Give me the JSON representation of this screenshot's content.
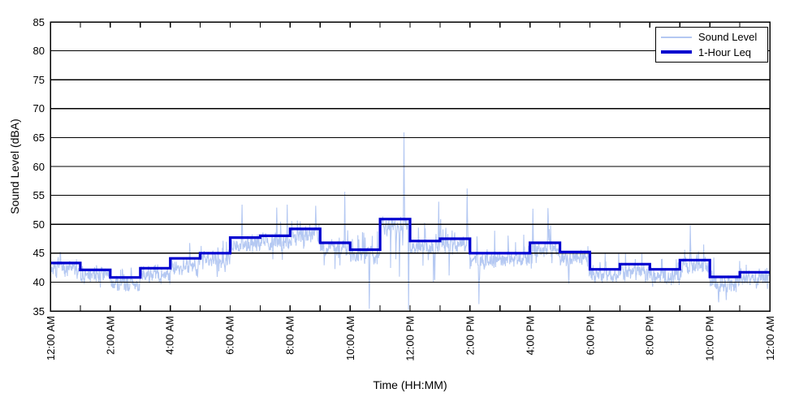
{
  "legend": {
    "position": "top-right",
    "items": [
      {
        "label": "Sound Level",
        "color": "#b4c8f2",
        "line_width": 1
      },
      {
        "label": "1-Hour Leq",
        "color": "#0000cf",
        "line_width": 3
      }
    ]
  },
  "chart_data": {
    "type": "line",
    "title": "",
    "xlabel": "Time (HH:MM)",
    "ylabel": "Sound Level (dBA)",
    "ylim": [
      35,
      85
    ],
    "ytick_interval": 5,
    "ytick_values": [
      35,
      40,
      45,
      50,
      55,
      60,
      65,
      70,
      75,
      80,
      85
    ],
    "x_span_hours": 24,
    "xtick_major_every_hours": 2,
    "xtick_minor_every_hours": 1,
    "xtick_labels": [
      "12:00 AM",
      "2:00 AM",
      "4:00 AM",
      "6:00 AM",
      "8:00 AM",
      "10:00 AM",
      "12:00 PM",
      "2:00 PM",
      "4:00 PM",
      "6:00 PM",
      "8:00 PM",
      "10:00 PM",
      "12:00 AM"
    ],
    "grid": "horizontal-solid-black",
    "axes_box": true,
    "tick_direction": "in",
    "series": [
      {
        "name": "Sound Level",
        "style": "noisy-line",
        "color": "#b4c8f2",
        "note": "high-rate sound level trace; values estimated as per-hour min/max envelope plus notable spikes",
        "hourly_envelope_lo": [
          40.5,
          39.0,
          38.5,
          39.0,
          40.0,
          39.5,
          41.0,
          42.0,
          42.5,
          39.5,
          35.8,
          35.5,
          36.5,
          37.0,
          36.5,
          38.0,
          38.5,
          38.5,
          38.5,
          38.5,
          38.5,
          39.0,
          36.2,
          37.5
        ],
        "hourly_envelope_hi": [
          46.5,
          44.5,
          44.0,
          45.5,
          48.5,
          50.0,
          53.0,
          53.0,
          53.0,
          52.0,
          52.0,
          53.0,
          54.0,
          54.0,
          52.0,
          52.5,
          52.5,
          51.0,
          47.5,
          48.0,
          47.0,
          49.5,
          47.0,
          47.0
        ],
        "spikes": [
          {
            "hour": 6.4,
            "value": 53.4
          },
          {
            "hour": 7.55,
            "value": 52.9
          },
          {
            "hour": 7.9,
            "value": 53.4
          },
          {
            "hour": 8.85,
            "value": 53.2
          },
          {
            "hour": 9.82,
            "value": 55.6
          },
          {
            "hour": 10.64,
            "value": 35.4
          },
          {
            "hour": 11.8,
            "value": 65.9
          },
          {
            "hour": 11.95,
            "value": 35.2
          },
          {
            "hour": 12.95,
            "value": 53.9
          },
          {
            "hour": 13.9,
            "value": 56.2
          },
          {
            "hour": 14.3,
            "value": 36.2
          },
          {
            "hour": 16.1,
            "value": 52.7
          },
          {
            "hour": 16.6,
            "value": 52.8
          },
          {
            "hour": 21.35,
            "value": 49.8
          },
          {
            "hour": 22.3,
            "value": 36.5
          },
          {
            "hour": 22.55,
            "value": 36.9
          }
        ],
        "seed": 7
      },
      {
        "name": "1-Hour Leq",
        "style": "step",
        "color": "#0000cf",
        "hour_starts": [
          "12 AM",
          "1 AM",
          "2 AM",
          "3 AM",
          "4 AM",
          "5 AM",
          "6 AM",
          "7 AM",
          "8 AM",
          "9 AM",
          "10 AM",
          "11 AM",
          "12 PM",
          "1 PM",
          "2 PM",
          "3 PM",
          "4 PM",
          "5 PM",
          "6 PM",
          "7 PM",
          "8 PM",
          "9 PM",
          "10 PM",
          "11 PM"
        ],
        "values": [
          43.3,
          42.1,
          40.8,
          42.4,
          44.1,
          45.0,
          47.7,
          48.0,
          49.2,
          46.8,
          45.6,
          50.9,
          47.1,
          47.5,
          45.0,
          45.0,
          46.8,
          45.2,
          42.2,
          43.1,
          42.2,
          43.8,
          40.9,
          41.7
        ]
      }
    ]
  }
}
